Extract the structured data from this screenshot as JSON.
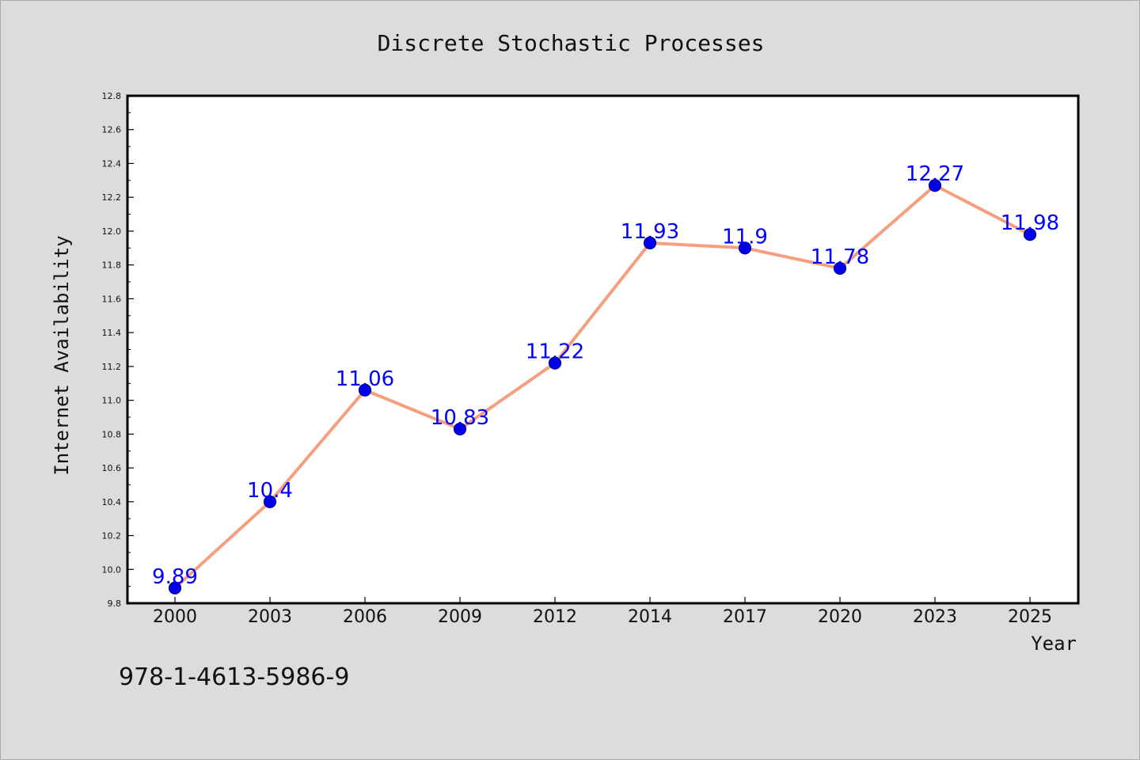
{
  "chart_data": {
    "type": "line",
    "title": "Discrete Stochastic Processes",
    "xlabel": "Year",
    "ylabel": "Internet Availability",
    "categories": [
      "2000",
      "2003",
      "2006",
      "2009",
      "2012",
      "2014",
      "2017",
      "2020",
      "2023",
      "2025"
    ],
    "series": [
      {
        "values": [
          9.89,
          10.4,
          11.06,
          10.83,
          11.22,
          11.93,
          11.9,
          11.78,
          12.27,
          11.98
        ]
      }
    ],
    "data_labels": [
      "9.89",
      "10.4",
      "11.06",
      "10.83",
      "11.22",
      "11.93",
      "11.9",
      "11.78",
      "12.27",
      "11.98"
    ],
    "ylim": [
      9.8,
      12.8
    ],
    "yticks": [
      "9.8",
      "10.0",
      "10.2",
      "10.4",
      "10.6",
      "10.8",
      "11.0",
      "11.2",
      "11.4",
      "11.6",
      "11.8",
      "12.0",
      "12.2",
      "12.4",
      "12.6",
      "12.8"
    ],
    "grid": false,
    "legend": "none",
    "colors": {
      "line": "#f4a07f",
      "marker": "#0000ee",
      "marker_edge": "#000080",
      "data_label": "#0000ff",
      "background": "#dcdcdc",
      "plot_background": "#ffffff"
    }
  },
  "footnote": "978-1-4613-5986-9"
}
